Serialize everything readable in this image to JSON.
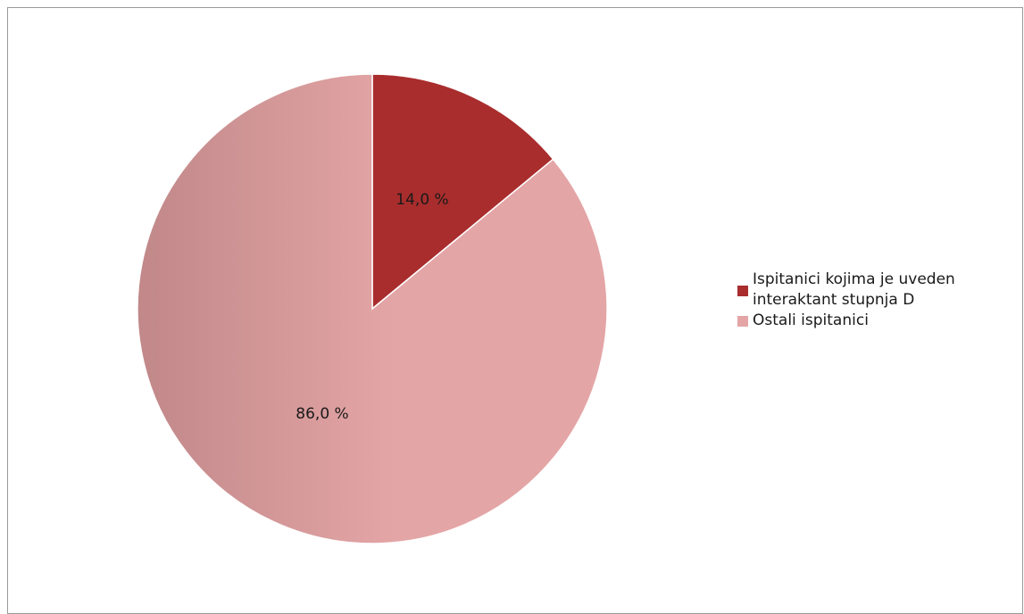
{
  "colors": {
    "slice_0": "#a92d2d",
    "slice_1": "#e4a5a6",
    "slice_1_shadow": "#c18889",
    "frame": "#9a9a9a"
  },
  "chart_data": {
    "type": "pie",
    "title": "",
    "labels": [
      "Ispitanici kojima je uveden interaktant stupnja D",
      "Ostali ispitanici"
    ],
    "values": [
      14.0,
      86.0
    ],
    "data_labels": [
      "14,0 %",
      "86,0 %"
    ],
    "legend_position": "right",
    "start_angle_deg": 0,
    "direction": "clockwise"
  },
  "legend": {
    "items": [
      {
        "line1": "Ispitanici kojima je uveden",
        "line2": "interaktant stupnja D"
      },
      {
        "line1": "Ostali ispitanici"
      }
    ]
  }
}
